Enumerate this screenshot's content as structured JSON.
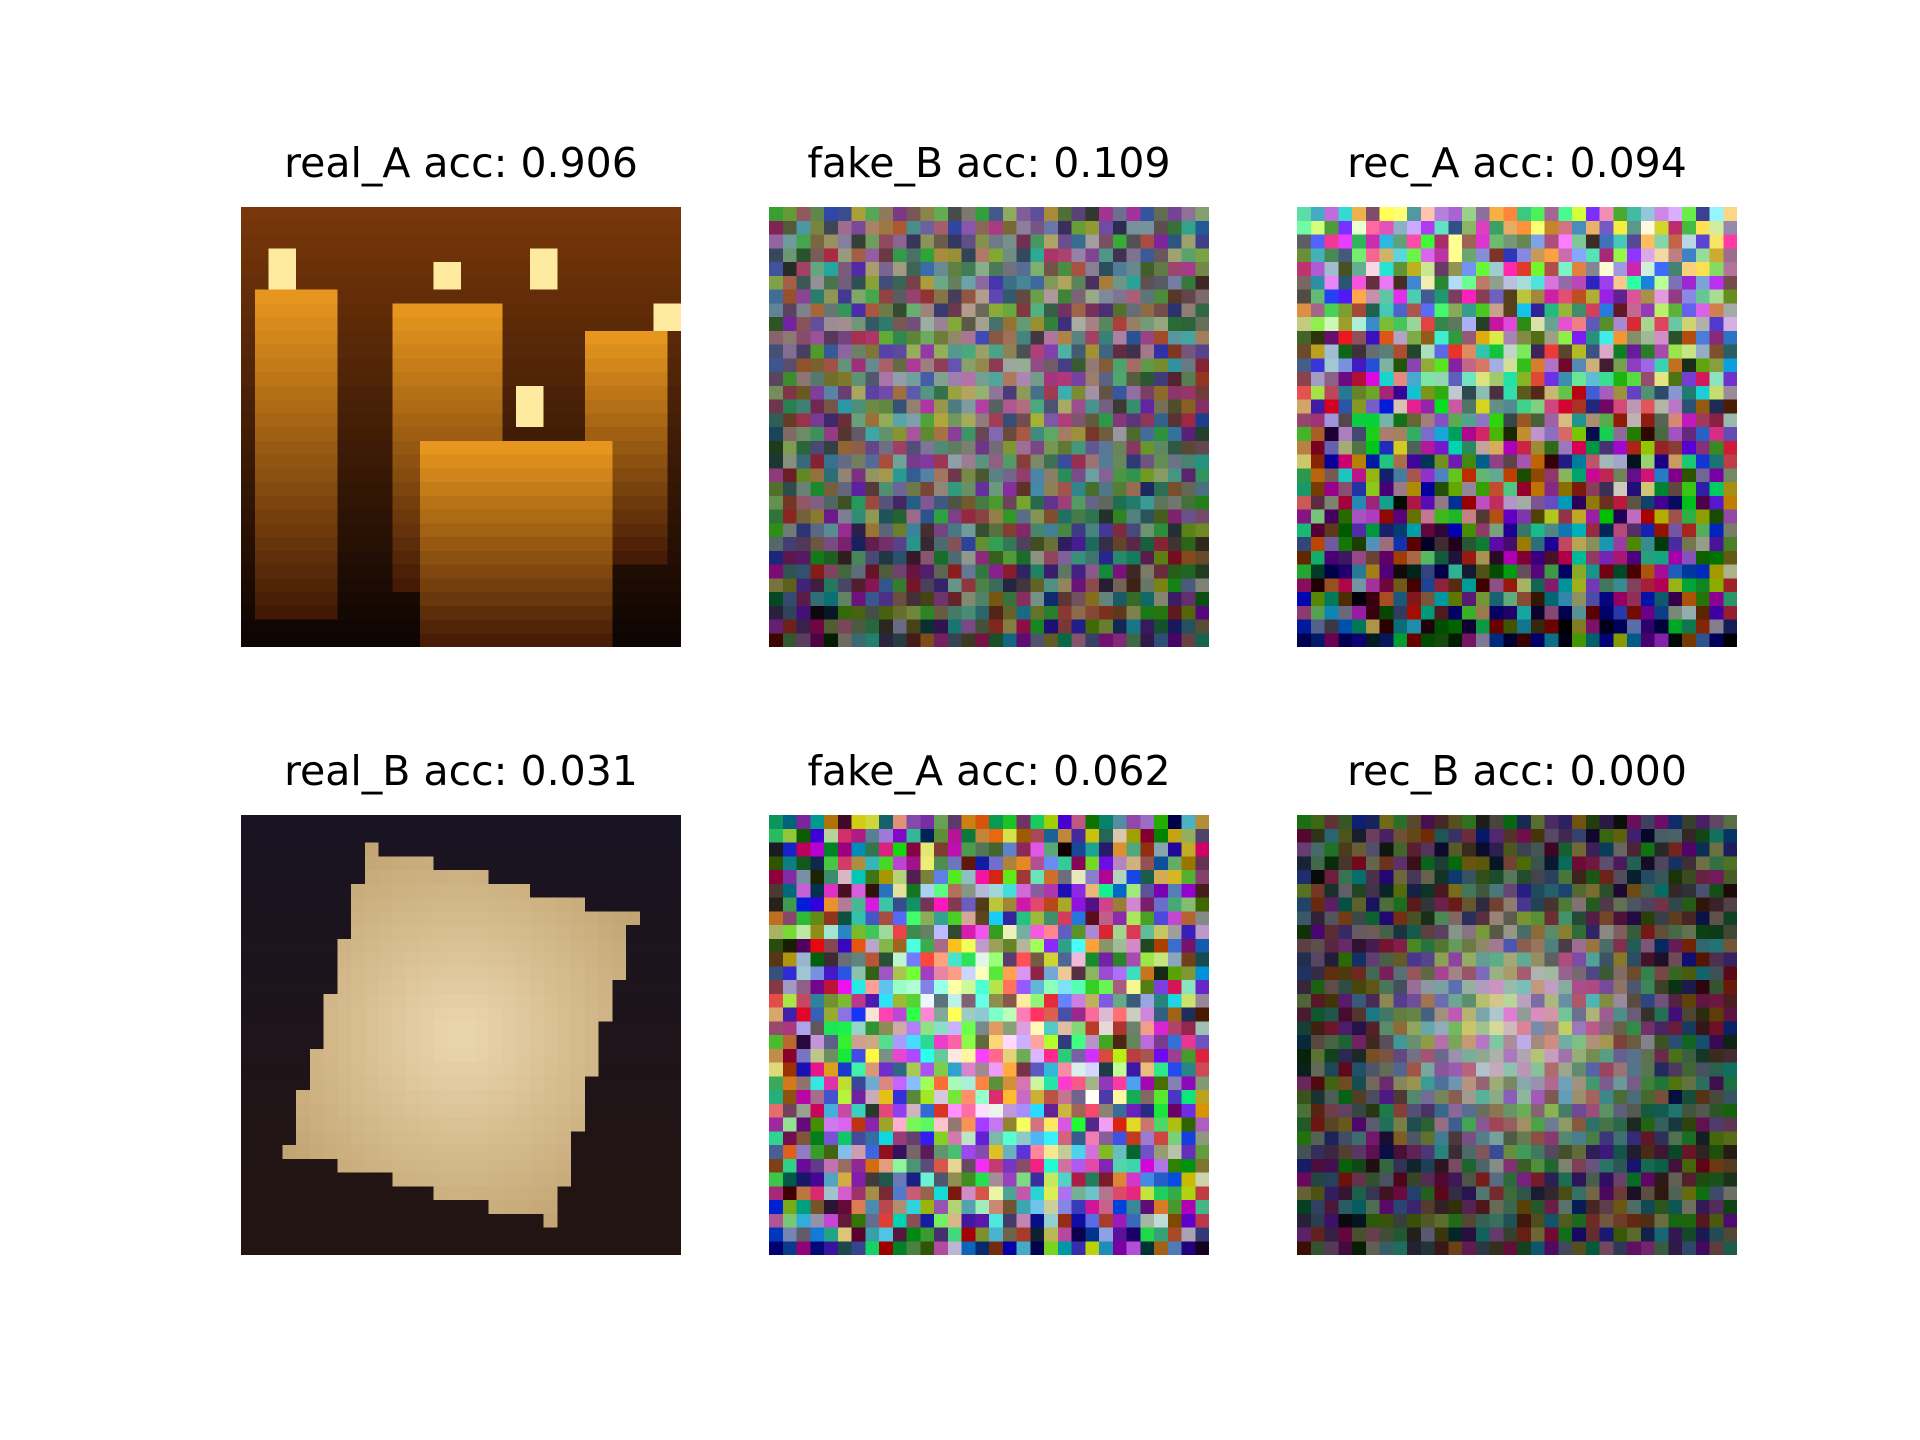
{
  "figure": {
    "panels": [
      {
        "title": "real_A acc: 0.906",
        "kind": "candles"
      },
      {
        "title": "fake_B acc: 0.109",
        "kind": "noise-soft"
      },
      {
        "title": "rec_A acc: 0.094",
        "kind": "noise-bands"
      },
      {
        "title": "real_B acc: 0.031",
        "kind": "tile"
      },
      {
        "title": "fake_A acc: 0.062",
        "kind": "noise-vivid"
      },
      {
        "title": "rec_B acc: 0.000",
        "kind": "noise-glow"
      }
    ]
  }
}
